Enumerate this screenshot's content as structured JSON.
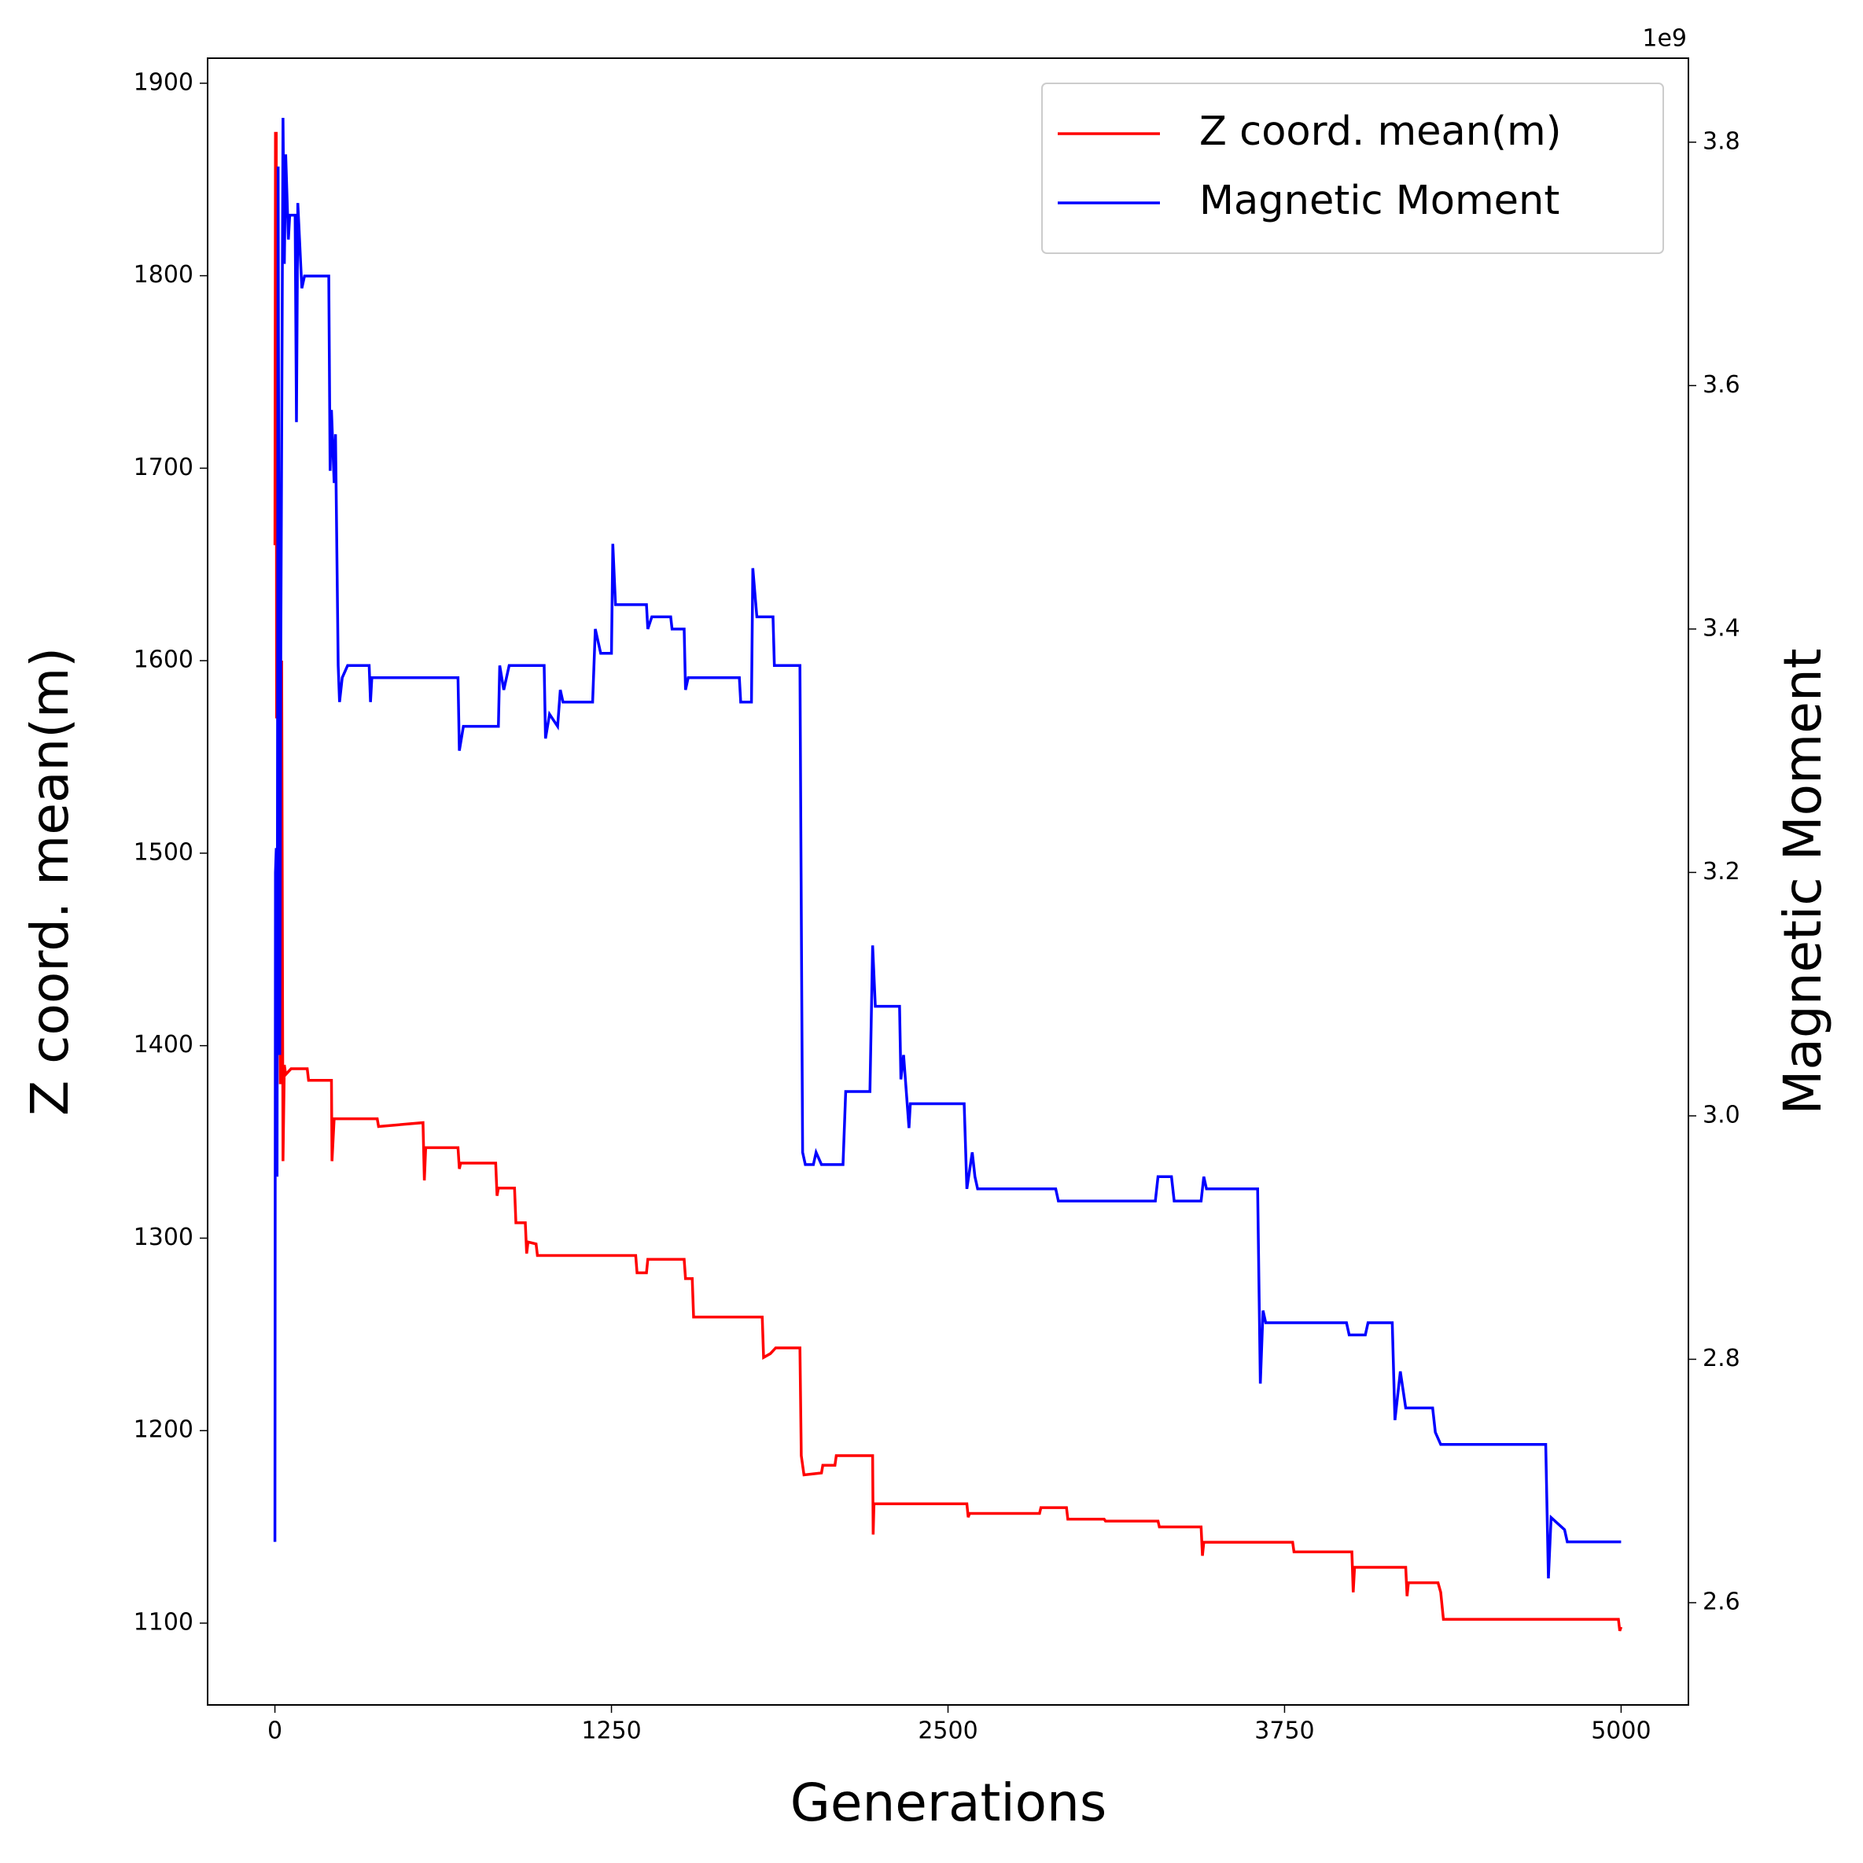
{
  "chart_data": {
    "type": "line",
    "xlabel": "Generations",
    "ylabel": "Z coord. mean(m)",
    "y2label": "Magnetic Moment",
    "y2_offset_label": "1e9",
    "xlim": [
      -250,
      5250
    ],
    "ylim": [
      1057.5,
      1913
    ],
    "y2lim": [
      2.516,
      3.869
    ],
    "xticks": [
      0,
      1250,
      2500,
      3750,
      5000
    ],
    "yticks": [
      1100,
      1200,
      1300,
      1400,
      1500,
      1600,
      1700,
      1800,
      1900
    ],
    "y2ticks": [
      2.6,
      2.8,
      {
        "value": 3.0,
        "label": "3.0"
      },
      3.2,
      3.4,
      3.6,
      3.8
    ],
    "grid": false,
    "legend": "upper right",
    "series": [
      {
        "name": "Z coord. mean(m)",
        "color": "#ff0000",
        "x": [
          0,
          2,
          5,
          6,
          10,
          15,
          20,
          25,
          30,
          35,
          40,
          60,
          120,
          125,
          210,
          212,
          220,
          380,
          385,
          550,
          555,
          560,
          680,
          685,
          690,
          820,
          825,
          830,
          890,
          895,
          930,
          935,
          940,
          970,
          975,
          1340,
          1345,
          1380,
          1385,
          1520,
          1525,
          1550,
          1555,
          1810,
          1815,
          1840,
          1860,
          1950,
          1955,
          1965,
          2030,
          2035,
          2080,
          2085,
          2220,
          2222,
          2225,
          2570,
          2575,
          2580,
          2840,
          2845,
          2940,
          2945,
          3080,
          3085,
          3280,
          3285,
          3440,
          3445,
          3450,
          3780,
          3785,
          4000,
          4005,
          4010,
          4200,
          4205,
          4210,
          4320,
          4330,
          4340,
          4990,
          4995,
          5000
        ],
        "values": [
          1660,
          1874,
          1874,
          1570,
          1700,
          1600,
          1380,
          1600,
          1340,
          1390,
          1385,
          1388,
          1388,
          1382,
          1382,
          1340,
          1362,
          1362,
          1358,
          1360,
          1330,
          1347,
          1347,
          1336,
          1339,
          1339,
          1322,
          1326,
          1326,
          1308,
          1308,
          1292,
          1298,
          1297,
          1291,
          1291,
          1282,
          1282,
          1289,
          1289,
          1279,
          1279,
          1259,
          1259,
          1238,
          1240,
          1243,
          1243,
          1187,
          1177,
          1178,
          1182,
          1182,
          1187,
          1187,
          1146,
          1162,
          1162,
          1155,
          1157,
          1157,
          1160,
          1160,
          1154,
          1154,
          1153,
          1153,
          1150,
          1150,
          1135,
          1142,
          1142,
          1137,
          1137,
          1116,
          1129,
          1129,
          1114,
          1121,
          1121,
          1116,
          1102,
          1102,
          1096,
          1098
        ]
      },
      {
        "name": "Magnetic Moment",
        "color": "#0000ff",
        "axis": "y2",
        "x": [
          0,
          2,
          5,
          8,
          12,
          18,
          22,
          30,
          35,
          40,
          50,
          55,
          75,
          80,
          85,
          100,
          110,
          200,
          205,
          210,
          220,
          225,
          235,
          240,
          250,
          270,
          350,
          355,
          360,
          680,
          685,
          700,
          720,
          830,
          835,
          850,
          870,
          1000,
          1005,
          1020,
          1050,
          1060,
          1070,
          1180,
          1190,
          1210,
          1250,
          1255,
          1265,
          1380,
          1385,
          1400,
          1470,
          1475,
          1520,
          1525,
          1535,
          1600,
          1725,
          1730,
          1770,
          1775,
          1790,
          1850,
          1855,
          1870,
          1950,
          1960,
          1970,
          2000,
          2010,
          2030,
          2110,
          2120,
          2210,
          2220,
          2230,
          2320,
          2325,
          2335,
          2355,
          2360,
          2560,
          2570,
          2590,
          2600,
          2610,
          2900,
          2910,
          3270,
          3280,
          3330,
          3340,
          3440,
          3450,
          3460,
          3650,
          3660,
          3670,
          3680,
          3980,
          3990,
          4050,
          4060,
          4150,
          4160,
          4180,
          4200,
          4300,
          4310,
          4330,
          4720,
          4730,
          4740,
          4790,
          4800,
          4990,
          5000
        ],
        "values": [
          2.65,
          3.2,
          3.22,
          2.95,
          3.78,
          3.05,
          3.39,
          3.82,
          3.7,
          3.79,
          3.72,
          3.74,
          3.74,
          3.57,
          3.75,
          3.68,
          3.69,
          3.69,
          3.53,
          3.58,
          3.52,
          3.56,
          3.37,
          3.34,
          3.36,
          3.37,
          3.37,
          3.34,
          3.36,
          3.36,
          3.3,
          3.32,
          3.32,
          3.32,
          3.37,
          3.35,
          3.37,
          3.37,
          3.31,
          3.33,
          3.32,
          3.35,
          3.34,
          3.34,
          3.4,
          3.38,
          3.38,
          3.47,
          3.42,
          3.42,
          3.4,
          3.41,
          3.41,
          3.4,
          3.4,
          3.35,
          3.36,
          3.36,
          3.36,
          3.34,
          3.34,
          3.45,
          3.41,
          3.41,
          3.37,
          3.37,
          3.37,
          2.97,
          2.96,
          2.96,
          2.97,
          2.96,
          2.96,
          3.02,
          3.02,
          3.14,
          3.09,
          3.09,
          3.03,
          3.05,
          2.99,
          3.01,
          3.01,
          2.94,
          2.97,
          2.95,
          2.94,
          2.94,
          2.93,
          2.93,
          2.95,
          2.95,
          2.93,
          2.93,
          2.95,
          2.94,
          2.94,
          2.78,
          2.84,
          2.83,
          2.83,
          2.82,
          2.82,
          2.83,
          2.83,
          2.75,
          2.79,
          2.76,
          2.76,
          2.74,
          2.73,
          2.73,
          2.62,
          2.67,
          2.66,
          2.65,
          2.65,
          2.65
        ]
      }
    ]
  }
}
